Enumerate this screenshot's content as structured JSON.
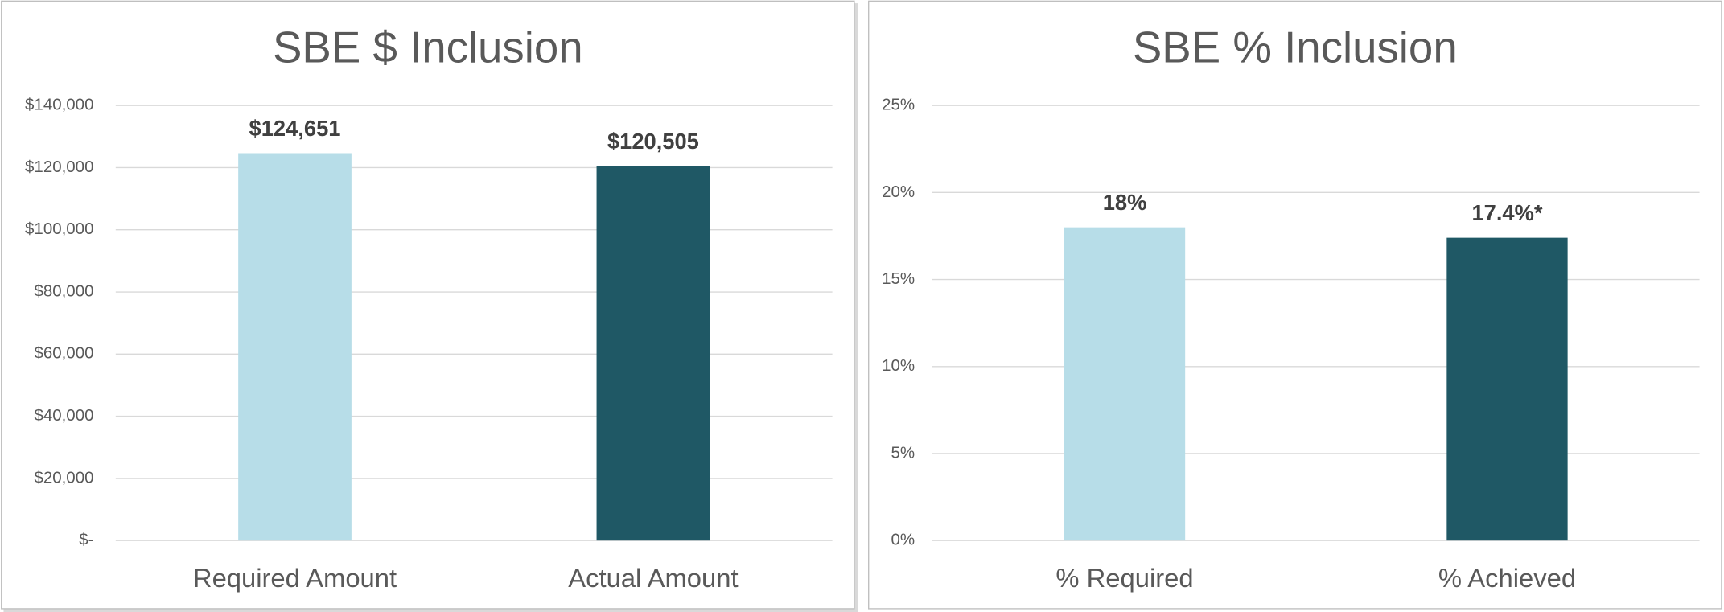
{
  "chart_data": [
    {
      "type": "bar",
      "title": "SBE $ Inclusion",
      "categories": [
        "Required Amount",
        "Actual Amount"
      ],
      "values": [
        124651,
        120505
      ],
      "value_labels": [
        "$124,651",
        "$120,505"
      ],
      "colors": [
        "#b7dde8",
        "#1f5865"
      ],
      "ylim": [
        0,
        140000
      ],
      "yticks": [
        {
          "value": 0,
          "label": "$-"
        },
        {
          "value": 20000,
          "label": "$20,000"
        },
        {
          "value": 40000,
          "label": "$40,000"
        },
        {
          "value": 60000,
          "label": "$60,000"
        },
        {
          "value": 80000,
          "label": "$80,000"
        },
        {
          "value": 100000,
          "label": "$100,000"
        },
        {
          "value": 120000,
          "label": "$120,000"
        },
        {
          "value": 140000,
          "label": "$140,000"
        }
      ],
      "grid": true
    },
    {
      "type": "bar",
      "title": "SBE % Inclusion",
      "categories": [
        "% Required",
        "% Achieved"
      ],
      "values": [
        18,
        17.4
      ],
      "value_labels": [
        "18%",
        "17.4%*"
      ],
      "colors": [
        "#b7dde8",
        "#1f5865"
      ],
      "ylim": [
        0,
        25
      ],
      "yticks": [
        {
          "value": 0,
          "label": "0%"
        },
        {
          "value": 5,
          "label": "5%"
        },
        {
          "value": 10,
          "label": "10%"
        },
        {
          "value": 15,
          "label": "15%"
        },
        {
          "value": 20,
          "label": "20%"
        },
        {
          "value": 25,
          "label": "25%"
        }
      ],
      "grid": true
    }
  ]
}
